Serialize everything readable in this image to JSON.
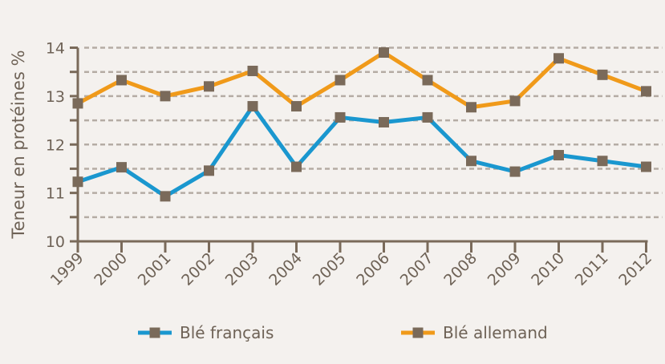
{
  "chart_data": {
    "type": "line",
    "title": "",
    "xlabel": "",
    "ylabel": "Teneur en protéines %",
    "ylim": [
      10,
      14
    ],
    "yticks": [
      10,
      11,
      12,
      13,
      14
    ],
    "grid_step": 0.5,
    "grid": true,
    "legend_position": "bottom",
    "x": [
      "1999",
      "2000",
      "2001",
      "2002",
      "2003",
      "2004",
      "2005",
      "2006",
      "2007",
      "2008",
      "2009",
      "2010",
      "2011",
      "2012"
    ],
    "series": [
      {
        "name": "Blé français",
        "color": "#1a97cf",
        "values": [
          11.23,
          11.53,
          10.93,
          11.46,
          12.79,
          11.54,
          12.56,
          12.46,
          12.56,
          11.66,
          11.44,
          11.78,
          11.66,
          11.54
        ]
      },
      {
        "name": "Blé allemand",
        "color": "#f09a1a",
        "values": [
          12.85,
          13.33,
          13.0,
          13.2,
          13.52,
          12.79,
          13.33,
          13.9,
          13.33,
          12.77,
          12.9,
          13.78,
          13.44,
          13.1
        ]
      }
    ],
    "marker_color": "#7a6a5a",
    "axis_color": "#7a6a5a",
    "grid_color": "#b5aca4"
  }
}
